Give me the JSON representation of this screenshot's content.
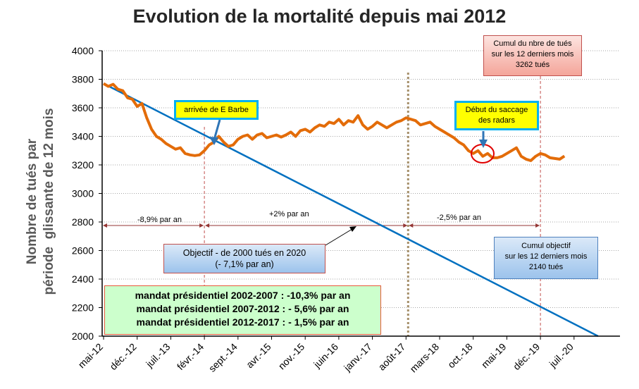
{
  "chart_data": {
    "type": "line",
    "title": "Evolution de la mortalité depuis mai 2012",
    "ylabel": "Nombre de tués par\npériode  glissante de 12 mois",
    "xlabel": "",
    "ylim": [
      2000,
      4000
    ],
    "yticks": [
      2000,
      2200,
      2400,
      2600,
      2800,
      3000,
      3200,
      3400,
      3600,
      3800,
      4000
    ],
    "xticks": [
      "mai-12",
      "déc.-12",
      "juil.-13",
      "févr.-14",
      "sept.-14",
      "avr.-15",
      "nov.-15",
      "juin-16",
      "janv.-17",
      "août-17",
      "mars-18",
      "oct.-18",
      "mai-19",
      "déc.-19",
      "juil.-20"
    ],
    "grid": "horizontal dotted",
    "series": [
      {
        "color": "#e36c09",
        "values": [
          3770,
          3750,
          3765,
          3730,
          3720,
          3670,
          3660,
          3610,
          3630,
          3530,
          3450,
          3400,
          3380,
          3350,
          3330,
          3310,
          3320,
          3280,
          3270,
          3265,
          3270,
          3300,
          3340,
          3360,
          3400,
          3360,
          3330,
          3340,
          3380,
          3400,
          3410,
          3380,
          3410,
          3420,
          3390,
          3400,
          3410,
          3395,
          3410,
          3430,
          3400,
          3440,
          3450,
          3430,
          3460,
          3480,
          3470,
          3500,
          3490,
          3520,
          3480,
          3510,
          3500,
          3545,
          3480,
          3450,
          3470,
          3500,
          3480,
          3460,
          3480,
          3500,
          3510,
          3530,
          3520,
          3510,
          3480,
          3490,
          3500,
          3470,
          3450,
          3430,
          3410,
          3390,
          3360,
          3340,
          3300,
          3280,
          3300,
          3260,
          3280,
          3250,
          3250,
          3260,
          3280,
          3300,
          3320,
          3260,
          3240,
          3230,
          3260,
          3280,
          3270,
          3250,
          3245,
          3240,
          3262
        ]
      },
      {
        "color": "#0070c0",
        "x_range": [
          "mai-12",
          "déc.-20"
        ],
        "values": [
          3770,
          2000
        ]
      }
    ],
    "vertical_lines": [
      {
        "at": "févr.-14",
        "style": "dashed",
        "color": "#c0504d"
      },
      {
        "at": "août-17",
        "style": "dotted",
        "color": "#a6906b"
      },
      {
        "at": "déc.-19",
        "style": "dashed",
        "color": "#c0504d"
      }
    ],
    "annotations": {
      "barbe": "arrivée de E Barbe",
      "radars": [
        "Début du saccage",
        "des radars"
      ],
      "cumul_tues": [
        "Cumul du nbre de tués",
        "sur les 12 derniers mois",
        "3262 tués"
      ],
      "cumul_objectif": [
        "Cumul objectif",
        "sur les 12 derniers mois",
        "2140 tués"
      ],
      "objectif": [
        "Objectif - de 2000 tués en 2020",
        "(- 7,1% par an)"
      ],
      "mandats": [
        "mandat présidentiel 2002-2007 : -10,3% par an",
        "mandat présidentiel 2007-2012 : - 5,6% par an",
        "mandat présidentiel 2012-2017 : - 1,5% par an"
      ],
      "periods": [
        "-8,9% par an",
        "+2% par an",
        "-2,5% par an"
      ]
    }
  }
}
